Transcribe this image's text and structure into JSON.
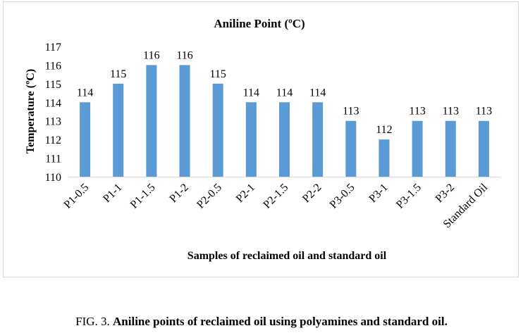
{
  "chart_data": {
    "type": "bar",
    "title": "Aniline Point (ºC)",
    "xlabel": "Samples of reclaimed oil and standard oil",
    "ylabel": "Temperature (ºC)",
    "categories": [
      "P1-0.5",
      "P1-1",
      "P1-1.5",
      "P1-2",
      "P2-0.5",
      "P2-1",
      "P2-1.5",
      "P2-2",
      "P3-0.5",
      "P3-1",
      "P3-1.5",
      "P3-2",
      "Standard Oil"
    ],
    "values": [
      114,
      115,
      116,
      116,
      115,
      114,
      114,
      114,
      113,
      112,
      113,
      113,
      113
    ],
    "ylim": [
      110,
      117
    ],
    "yticks": [
      110,
      111,
      112,
      113,
      114,
      115,
      116,
      117
    ],
    "grid": false,
    "legend": "none",
    "bar_color": "#5b9bd5"
  },
  "caption": {
    "prefix": "FIG. 3.",
    "text": "Aniline points of reclaimed oil using polyamines and standard oil."
  }
}
